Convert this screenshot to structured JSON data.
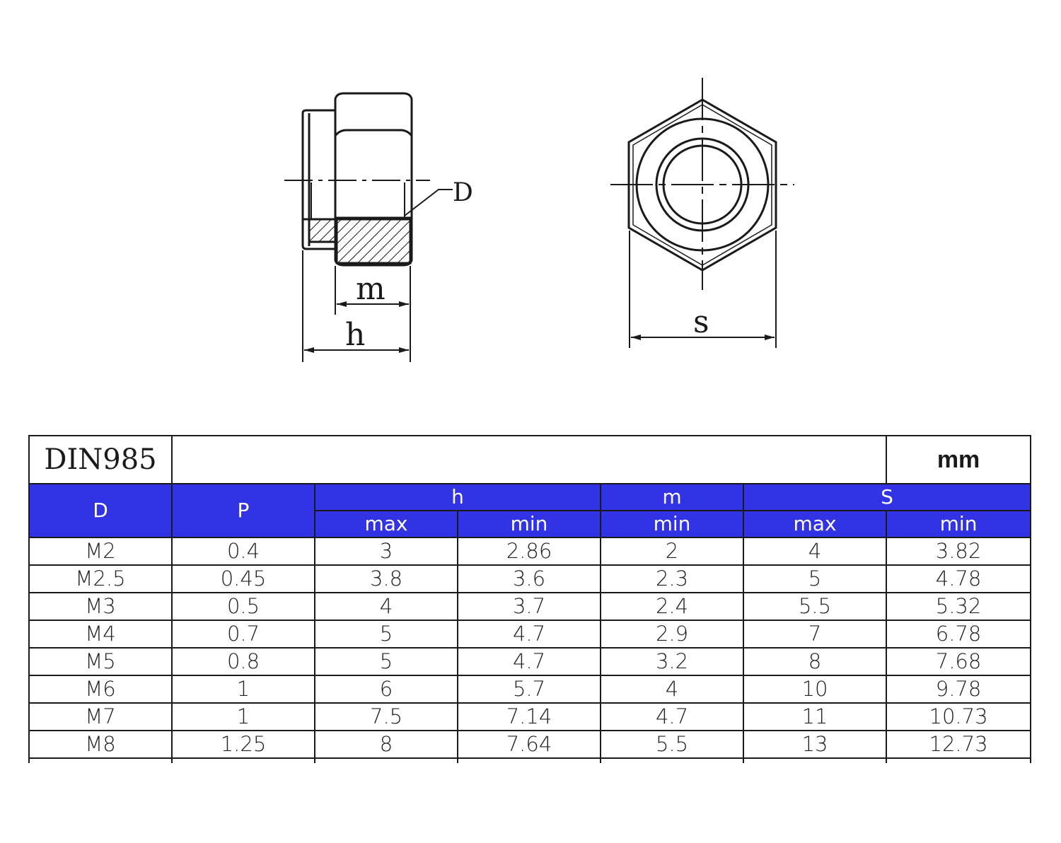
{
  "drawing": {
    "labels": {
      "d": "D",
      "m": "m",
      "h": "h",
      "s": "s"
    }
  },
  "table": {
    "title": "DIN985",
    "unit": "mm",
    "headers": {
      "d": "D",
      "p": "P",
      "h": "h",
      "m": "m",
      "s": "S",
      "h_max": "max",
      "h_min": "min",
      "m_min": "min",
      "s_max": "max",
      "s_min": "min"
    },
    "rows": [
      [
        "M2",
        "0.4",
        "3",
        "2.86",
        "2",
        "4",
        "3.82"
      ],
      [
        "M2.5",
        "0.45",
        "3.8",
        "3.6",
        "2.3",
        "5",
        "4.78"
      ],
      [
        "M3",
        "0.5",
        "4",
        "3.7",
        "2.4",
        "5.5",
        "5.32"
      ],
      [
        "M4",
        "0.7",
        "5",
        "4.7",
        "2.9",
        "7",
        "6.78"
      ],
      [
        "M5",
        "0.8",
        "5",
        "4.7",
        "3.2",
        "8",
        "7.68"
      ],
      [
        "M6",
        "1",
        "6",
        "5.7",
        "4",
        "10",
        "9.78"
      ],
      [
        "M7",
        "1",
        "7.5",
        "7.14",
        "4.7",
        "11",
        "10.73"
      ],
      [
        "M8",
        "1.25",
        "8",
        "7.64",
        "5.5",
        "13",
        "12.73"
      ]
    ]
  },
  "colors": {
    "header_bg": "#3333e6",
    "header_text": "#ffffff",
    "line": "#1a1a1a"
  }
}
